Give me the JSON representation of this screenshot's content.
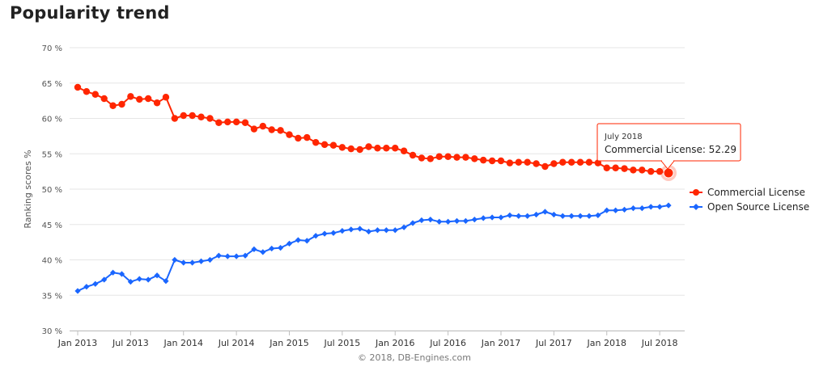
{
  "page": {
    "title": "Popularity trend"
  },
  "credit": "© 2018, DB-Engines.com",
  "tooltip": {
    "title": "July 2018",
    "body": "Commercial License: 52.29"
  },
  "chart_data": {
    "type": "line",
    "ylabel": "Ranking scores %",
    "ylim": [
      30,
      70
    ],
    "y_ticks": [
      {
        "value": 70,
        "label": "70 %"
      },
      {
        "value": 65,
        "label": "65 %"
      },
      {
        "value": 60,
        "label": "60 %"
      },
      {
        "value": 55,
        "label": "55 %"
      },
      {
        "value": 50,
        "label": "50 %"
      },
      {
        "value": 45,
        "label": "45 %"
      },
      {
        "value": 40,
        "label": "40 %"
      },
      {
        "value": 35,
        "label": "35 %"
      },
      {
        "value": 30,
        "label": "30 %"
      }
    ],
    "x_start": "Jan 2013",
    "x_end": "Jul 2018",
    "x_ticks": [
      {
        "month": 0,
        "label": "Jan 2013"
      },
      {
        "month": 6,
        "label": "Jul 2013"
      },
      {
        "month": 12,
        "label": "Jan 2014"
      },
      {
        "month": 18,
        "label": "Jul 2014"
      },
      {
        "month": 24,
        "label": "Jan 2015"
      },
      {
        "month": 30,
        "label": "Jul 2015"
      },
      {
        "month": 36,
        "label": "Jan 2016"
      },
      {
        "month": 42,
        "label": "Jul 2016"
      },
      {
        "month": 48,
        "label": "Jan 2017"
      },
      {
        "month": 54,
        "label": "Jul 2017"
      },
      {
        "month": 60,
        "label": "Jan 2018"
      },
      {
        "month": 66,
        "label": "Jul 2018"
      }
    ],
    "grid": true,
    "legend_position": "right",
    "series": [
      {
        "name": "Commercial License",
        "color": "#ff2600",
        "marker": "circle",
        "values": [
          64.4,
          63.8,
          63.4,
          62.8,
          61.8,
          62.0,
          63.1,
          62.7,
          62.8,
          62.2,
          63.0,
          60.0,
          60.4,
          60.4,
          60.2,
          60.0,
          59.4,
          59.5,
          59.5,
          59.4,
          58.5,
          58.9,
          58.4,
          58.3,
          57.7,
          57.2,
          57.3,
          56.6,
          56.3,
          56.2,
          55.9,
          55.7,
          55.6,
          56.0,
          55.8,
          55.8,
          55.8,
          55.4,
          54.8,
          54.4,
          54.3,
          54.6,
          54.6,
          54.5,
          54.5,
          54.3,
          54.1,
          54.0,
          54.0,
          53.7,
          53.8,
          53.8,
          53.6,
          53.2,
          53.6,
          53.8,
          53.8,
          53.8,
          53.8,
          53.7,
          53.0,
          53.0,
          52.9,
          52.7,
          52.7,
          52.5,
          52.5,
          52.29
        ]
      },
      {
        "name": "Open Source License",
        "color": "#1a66ff",
        "marker": "diamond",
        "values": [
          35.6,
          36.2,
          36.6,
          37.2,
          38.2,
          38.0,
          36.9,
          37.3,
          37.2,
          37.8,
          37.0,
          40.0,
          39.6,
          39.6,
          39.8,
          40.0,
          40.6,
          40.5,
          40.5,
          40.6,
          41.5,
          41.1,
          41.6,
          41.7,
          42.3,
          42.8,
          42.7,
          43.4,
          43.7,
          43.8,
          44.1,
          44.3,
          44.4,
          44.0,
          44.2,
          44.2,
          44.2,
          44.6,
          45.2,
          45.6,
          45.7,
          45.4,
          45.4,
          45.5,
          45.5,
          45.7,
          45.9,
          46.0,
          46.0,
          46.3,
          46.2,
          46.2,
          46.4,
          46.8,
          46.4,
          46.2,
          46.2,
          46.2,
          46.2,
          46.3,
          47.0,
          47.0,
          47.1,
          47.3,
          47.3,
          47.5,
          47.5,
          47.7
        ]
      }
    ]
  }
}
